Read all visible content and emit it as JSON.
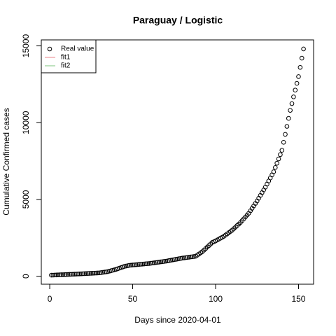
{
  "chart_data": {
    "type": "scatter",
    "title": "Paraguay / Logistic",
    "x_label": "Days since 2020-04-01",
    "y_label": "Cumulative Confirmed cases",
    "xlim": [
      -5.08,
      159.08
    ],
    "xticks": [
      0,
      50,
      100,
      150
    ],
    "ylim": [
      -519,
      15389
    ],
    "yticks": [
      0,
      5000,
      10000,
      15000
    ],
    "legend": {
      "corner": "top-left",
      "entries": [
        {
          "name": "Real value",
          "marker": "circle",
          "color": "#000000"
        },
        {
          "name": "fit1",
          "marker": "line",
          "color": "#e8828a"
        },
        {
          "name": "fit2",
          "marker": "line",
          "color": "#7cc47c"
        }
      ]
    },
    "series": [
      {
        "name": "Real value",
        "color": "#000000",
        "x": [
          1,
          2,
          3,
          4,
          5,
          6,
          7,
          8,
          9,
          10,
          11,
          12,
          13,
          14,
          15,
          16,
          17,
          18,
          19,
          20,
          21,
          22,
          23,
          24,
          25,
          26,
          27,
          28,
          29,
          30,
          31,
          32,
          33,
          34,
          35,
          36,
          37,
          38,
          39,
          40,
          41,
          42,
          43,
          44,
          45,
          46,
          47,
          48,
          49,
          50,
          51,
          52,
          53,
          54,
          55,
          56,
          57,
          58,
          59,
          60,
          61,
          62,
          63,
          64,
          65,
          66,
          67,
          68,
          69,
          70,
          71,
          72,
          73,
          74,
          75,
          76,
          77,
          78,
          79,
          80,
          81,
          82,
          83,
          84,
          85,
          86,
          87,
          88,
          89,
          90,
          91,
          92,
          93,
          94,
          95,
          96,
          97,
          98,
          99,
          100,
          101,
          102,
          103,
          104,
          105,
          106,
          107,
          108,
          109,
          110,
          111,
          112,
          113,
          114,
          115,
          116,
          117,
          118,
          119,
          120,
          121,
          122,
          123,
          124,
          125,
          126,
          127,
          128,
          129,
          130,
          131,
          132,
          133,
          134,
          135,
          136,
          137,
          138,
          139,
          140,
          141,
          142,
          143,
          144,
          145,
          146,
          147,
          148,
          149,
          150,
          151,
          152,
          153
        ],
        "values": [
          70,
          74,
          79,
          83,
          88,
          92,
          97,
          101,
          106,
          110,
          115,
          120,
          125,
          130,
          135,
          140,
          145,
          150,
          155,
          160,
          166,
          172,
          178,
          184,
          190,
          196,
          202,
          208,
          214,
          220,
          236,
          252,
          268,
          284,
          300,
          330,
          360,
          390,
          420,
          450,
          488,
          526,
          564,
          602,
          640,
          663,
          687,
          710,
          720,
          730,
          740,
          750,
          760,
          770,
          780,
          790,
          800,
          810,
          820,
          830,
          845,
          860,
          875,
          890,
          905,
          920,
          935,
          950,
          965,
          980,
          1000,
          1020,
          1040,
          1060,
          1080,
          1100,
          1120,
          1140,
          1160,
          1180,
          1195,
          1210,
          1225,
          1240,
          1255,
          1270,
          1285,
          1300,
          1375,
          1450,
          1525,
          1600,
          1700,
          1800,
          1900,
          2000,
          2100,
          2200,
          2250,
          2300,
          2360,
          2420,
          2480,
          2540,
          2600,
          2680,
          2760,
          2840,
          2920,
          3000,
          3100,
          3200,
          3300,
          3400,
          3500,
          3620,
          3740,
          3860,
          3980,
          4100,
          4260,
          4420,
          4580,
          4740,
          4900,
          5080,
          5260,
          5440,
          5620,
          5800,
          6000,
          6200,
          6400,
          6600,
          6800,
          7080,
          7360,
          7640,
          7920,
          8200,
          8720,
          9240,
          9760,
          10280,
          10800,
          11240,
          11680,
          12120,
          12560,
          13000,
          13600,
          14200,
          14800
        ]
      }
    ]
  }
}
